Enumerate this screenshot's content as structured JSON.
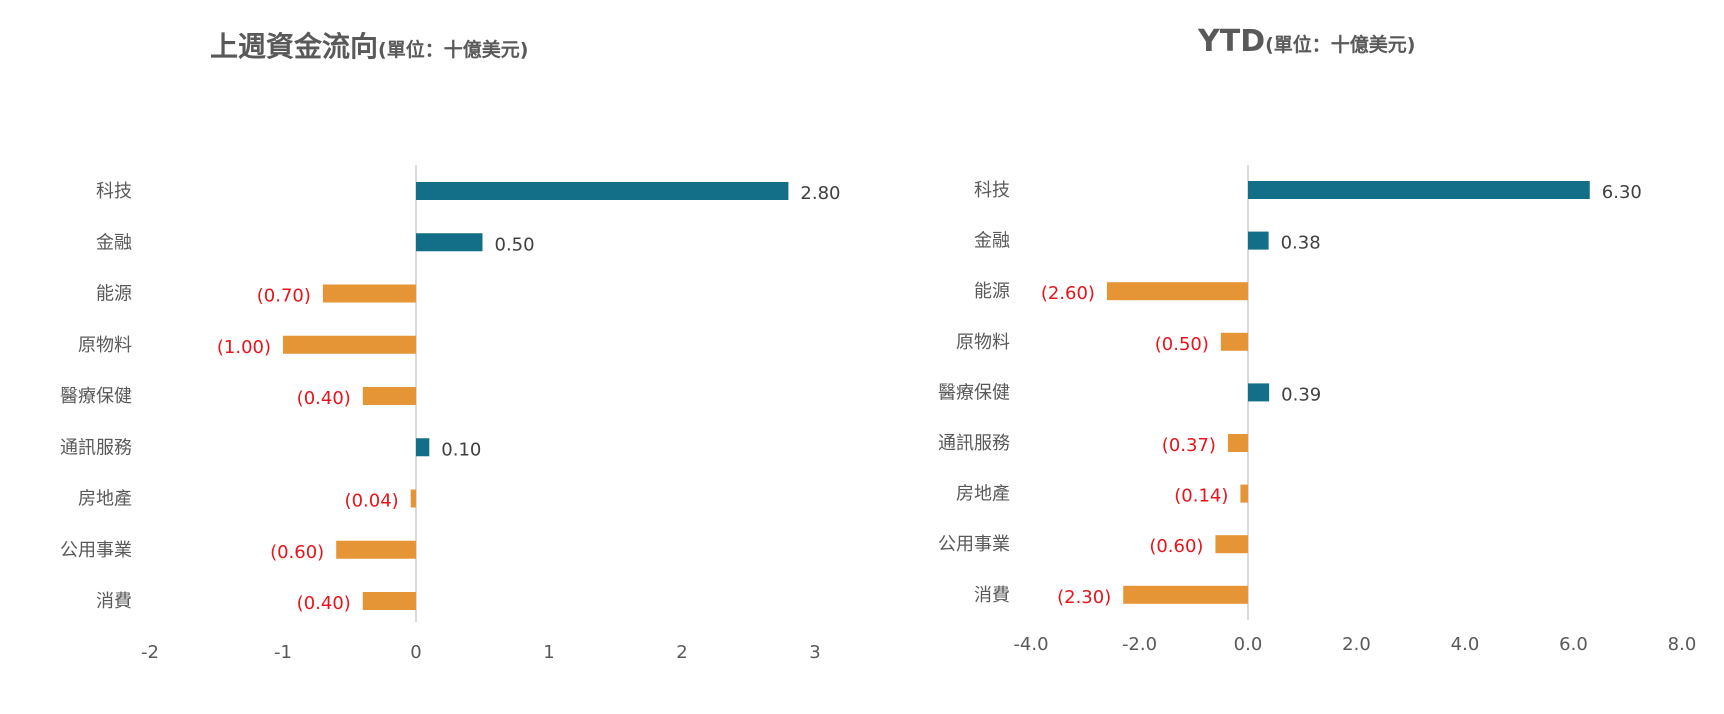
{
  "colors": {
    "positive": "#136f87",
    "negative": "#e69536",
    "negative_label": "#e8141b",
    "text": "#595959",
    "axis": "#d9d9d9"
  },
  "chart_data": [
    {
      "type": "bar",
      "orientation": "horizontal",
      "title": "上週資金流向",
      "title_unit": "(單位：十億美元)",
      "categories": [
        "科技",
        "金融",
        "能源",
        "原物料",
        "醫療保健",
        "通訊服務",
        "房地產",
        "公用事業",
        "消費"
      ],
      "values": [
        2.8,
        0.5,
        -0.7,
        -1.0,
        -0.4,
        0.1,
        -0.04,
        -0.6,
        -0.4
      ],
      "value_labels": [
        "2.80",
        "0.50",
        "(0.70)",
        "(1.00)",
        "(0.40)",
        "0.10",
        "(0.04)",
        "(0.60)",
        "(0.40)"
      ],
      "xlim": [
        -2,
        3
      ],
      "xticks": [
        -2,
        -1,
        0,
        1,
        2,
        3
      ],
      "xtick_labels": [
        "-2",
        "-1",
        "0",
        "1",
        "2",
        "3"
      ],
      "grid": false,
      "legend": "none"
    },
    {
      "type": "bar",
      "orientation": "horizontal",
      "title": "YTD",
      "title_unit": "(單位：十億美元)",
      "categories": [
        "科技",
        "金融",
        "能源",
        "原物料",
        "醫療保健",
        "通訊服務",
        "房地產",
        "公用事業",
        "消費"
      ],
      "values": [
        6.3,
        0.38,
        -2.6,
        -0.5,
        0.39,
        -0.37,
        -0.14,
        -0.6,
        -2.3
      ],
      "value_labels": [
        "6.30",
        "0.38",
        "(2.60)",
        "(0.50)",
        "0.39",
        "(0.37)",
        "(0.14)",
        "(0.60)",
        "(2.30)"
      ],
      "xlim": [
        -4,
        8
      ],
      "xticks": [
        -4,
        -2,
        0,
        2,
        4,
        6,
        8
      ],
      "xtick_labels": [
        "-4.0",
        "-2.0",
        "0.0",
        "2.0",
        "4.0",
        "6.0",
        "8.0"
      ],
      "grid": false,
      "legend": "none"
    }
  ]
}
